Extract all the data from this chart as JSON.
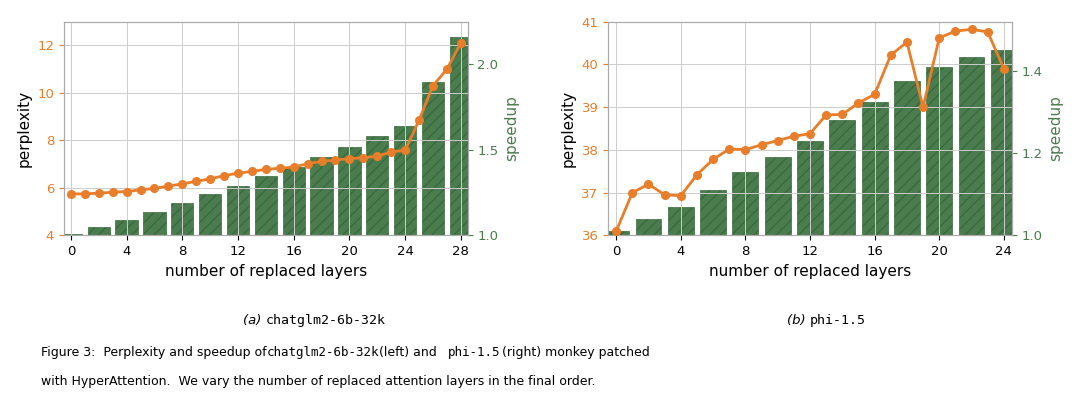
{
  "chart1": {
    "x_layers": [
      0,
      1,
      2,
      3,
      4,
      5,
      6,
      7,
      8,
      9,
      10,
      11,
      12,
      13,
      14,
      15,
      16,
      17,
      18,
      19,
      20,
      21,
      22,
      23,
      24,
      25,
      26,
      27,
      28
    ],
    "perplexity": [
      5.75,
      5.75,
      5.78,
      5.82,
      5.85,
      5.92,
      5.98,
      6.08,
      6.17,
      6.28,
      6.38,
      6.52,
      6.62,
      6.7,
      6.78,
      6.83,
      6.88,
      7.02,
      7.12,
      7.18,
      7.23,
      7.28,
      7.33,
      7.52,
      7.58,
      8.85,
      10.3,
      11.0,
      12.1
    ],
    "bar_x": [
      0,
      2,
      4,
      6,
      8,
      10,
      12,
      14,
      16,
      18,
      20,
      22,
      24,
      26,
      28
    ],
    "bar_speedup": [
      1.01,
      1.05,
      1.09,
      1.14,
      1.19,
      1.24,
      1.29,
      1.35,
      1.4,
      1.46,
      1.52,
      1.58,
      1.64,
      1.9,
      2.16
    ],
    "perplexity_ylim": [
      4,
      13
    ],
    "perplexity_yticks": [
      4,
      6,
      8,
      10,
      12
    ],
    "speedup_ylim": [
      1.0,
      2.25
    ],
    "speedup_yticks": [
      1.0,
      1.5,
      2.0
    ],
    "xlim": [
      -0.5,
      28.5
    ],
    "xticks": [
      0,
      4,
      8,
      12,
      16,
      20,
      24,
      28
    ]
  },
  "chart2": {
    "x_layers": [
      0,
      1,
      2,
      3,
      4,
      5,
      6,
      7,
      8,
      9,
      10,
      11,
      12,
      13,
      14,
      15,
      16,
      17,
      18,
      19,
      20,
      21,
      22,
      23,
      24
    ],
    "perplexity": [
      36.1,
      37.0,
      37.2,
      36.95,
      36.93,
      37.42,
      37.78,
      38.02,
      38.01,
      38.12,
      38.22,
      38.32,
      38.38,
      38.82,
      38.83,
      39.1,
      39.3,
      40.22,
      40.52,
      39.0,
      40.62,
      40.78,
      40.82,
      40.76,
      39.9
    ],
    "bar_x": [
      0,
      2,
      4,
      6,
      8,
      10,
      12,
      14,
      16,
      18,
      20,
      22,
      24
    ],
    "bar_speedup": [
      1.01,
      1.04,
      1.07,
      1.11,
      1.155,
      1.19,
      1.23,
      1.28,
      1.325,
      1.375,
      1.41,
      1.435,
      1.45
    ],
    "perplexity_ylim": [
      36,
      41
    ],
    "perplexity_yticks": [
      36,
      37,
      38,
      39,
      40,
      41
    ],
    "speedup_ylim": [
      1.0,
      1.52
    ],
    "speedup_yticks": [
      1.0,
      1.2,
      1.4
    ],
    "xlim": [
      -0.5,
      24.5
    ],
    "xticks": [
      0,
      4,
      8,
      12,
      16,
      20,
      24
    ]
  },
  "line_color": "#E87D2A",
  "bar_color": "#4a7c4e",
  "bar_hatch": "///",
  "bar_edgecolor": "#3a6b3e",
  "xlabel": "number of replaced layers",
  "ylabel_left": "perplexity",
  "ylabel_right": "speedup",
  "bg_color": "#ffffff",
  "grid_color": "#cccccc",
  "caption_a_plain": "(a) ",
  "caption_a_mono": "chatglm2-6b-32k",
  "caption_b_plain": "(b) ",
  "caption_b_mono": "phi-1.5",
  "fig_cap_1": "Figure 3:  Perplexity and speedup of ",
  "fig_cap_mono1": "chatglm2-6b-32k",
  "fig_cap_2": " (left) and ",
  "fig_cap_mono2": "phi-1.5",
  "fig_cap_3": " (right) monkey patched",
  "fig_cap_line2": "with HyperAttention.  We vary the number of replaced attention layers in the final order."
}
